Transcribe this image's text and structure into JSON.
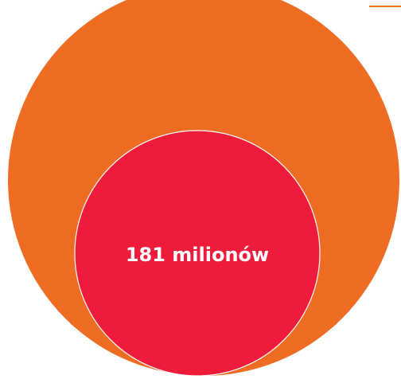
{
  "chart_data": {
    "type": "nested-bubble",
    "series": [
      {
        "value": null,
        "label": "",
        "color": "#EF6C23"
      },
      {
        "value": 181000000,
        "label": "181 milionów",
        "color": "#EE1B3B"
      }
    ],
    "label_color": "#FFFFFF",
    "rule_color": "#EF6C23"
  }
}
